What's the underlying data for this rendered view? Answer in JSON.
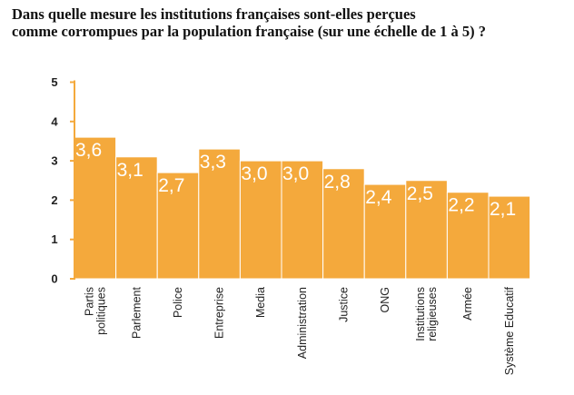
{
  "title_lines": [
    "Dans quelle mesure les institutions françaises sont-elles perçues",
    "comme corrompues par la population française (sur une échelle de 1 à 5) ?"
  ],
  "chart_data": {
    "type": "bar",
    "title": "Dans quelle mesure les institutions françaises sont-elles perçues comme corrompues par la population française (sur une échelle de 1 à 5) ?",
    "categories": [
      [
        "Partis",
        "politiques"
      ],
      [
        "Parlement"
      ],
      [
        "Police"
      ],
      [
        "Entreprise"
      ],
      [
        "Media"
      ],
      [
        "Administration"
      ],
      [
        "Justice"
      ],
      [
        "ONG"
      ],
      [
        "Institutions",
        "religieuses"
      ],
      [
        "Armée"
      ],
      [
        "Système Educatif"
      ]
    ],
    "values": [
      3.6,
      3.1,
      2.7,
      3.3,
      3.0,
      3.0,
      2.8,
      2.4,
      2.5,
      2.2,
      2.1
    ],
    "value_labels": [
      "3,6",
      "3,1",
      "2,7",
      "3,3",
      "3,0",
      "3,0",
      "2,8",
      "2,4",
      "2,5",
      "2,2",
      "2,1"
    ],
    "yticks": [
      "0",
      "1",
      "2",
      "3",
      "4",
      "5"
    ],
    "ylim": [
      0,
      5
    ],
    "bar_color": "#f4a93c",
    "axis_color": "#f4a93c",
    "grid": false,
    "legend": false
  }
}
